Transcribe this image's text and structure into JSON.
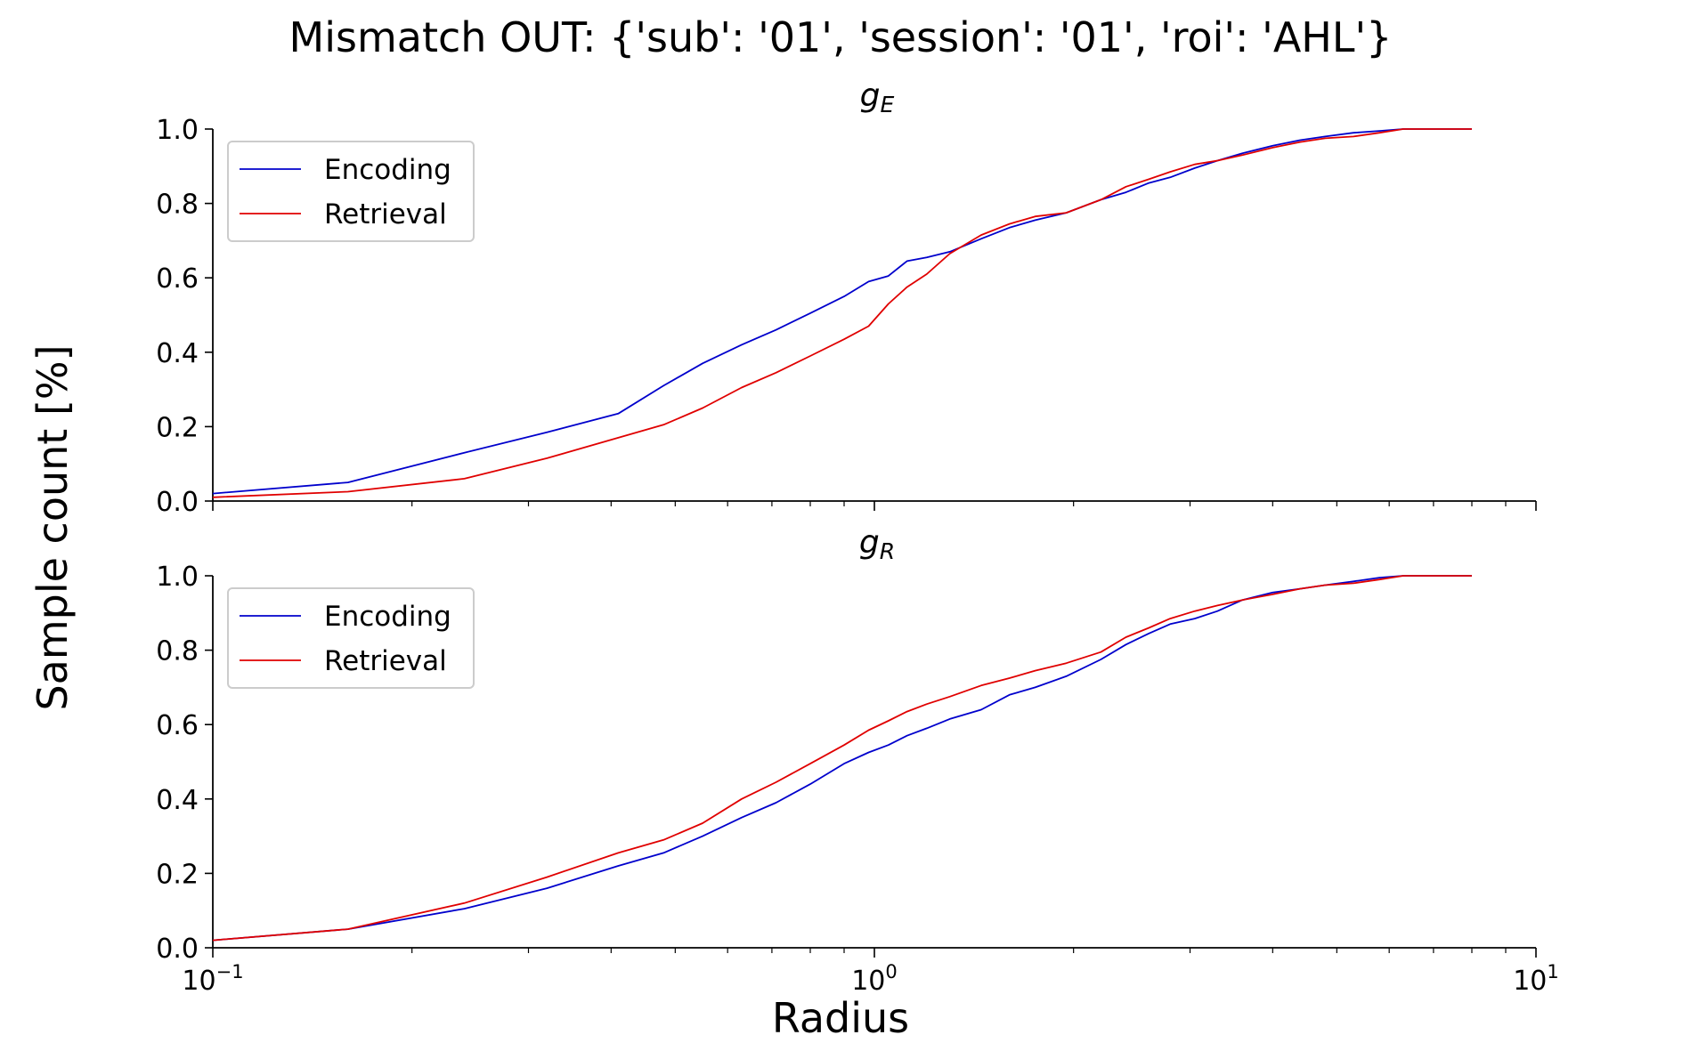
{
  "figure": {
    "suptitle": "Mismatch OUT: {'sub': '01', 'session': '01', 'roi': 'AHL'}",
    "xlabel": "Radius",
    "ylabel": "Sample count [%]"
  },
  "colors": {
    "Encoding": "#0000cc",
    "Retrieval": "#e00000"
  },
  "chart_data": [
    {
      "type": "line",
      "title": "g_E",
      "title_display": {
        "main": "g",
        "sub": "E"
      },
      "xscale": "log",
      "xlim": [
        0.1,
        10
      ],
      "ylim": [
        0.0,
        1.0
      ],
      "xticks": [
        0.1,
        1,
        10
      ],
      "xtick_labels": [
        "10^-1",
        "10^0",
        "10^1"
      ],
      "yticks": [
        "0.0",
        "0.2",
        "0.4",
        "0.6",
        "0.8",
        "1.0"
      ],
      "legend": "top-left",
      "grid": false,
      "series": [
        {
          "name": "Encoding",
          "x": [
            0.1,
            0.16,
            0.24,
            0.32,
            0.41,
            0.48,
            0.55,
            0.63,
            0.71,
            0.8,
            0.9,
            0.98,
            1.05,
            1.12,
            1.2,
            1.3,
            1.45,
            1.6,
            1.75,
            1.95,
            2.2,
            2.4,
            2.6,
            2.8,
            3.05,
            3.3,
            3.6,
            4.0,
            4.4,
            4.8,
            5.3,
            5.8,
            6.3,
            7.0,
            8.0
          ],
          "y": [
            0.02,
            0.05,
            0.13,
            0.185,
            0.235,
            0.31,
            0.37,
            0.42,
            0.46,
            0.505,
            0.55,
            0.59,
            0.605,
            0.645,
            0.655,
            0.67,
            0.705,
            0.735,
            0.755,
            0.775,
            0.81,
            0.83,
            0.855,
            0.87,
            0.895,
            0.915,
            0.935,
            0.955,
            0.97,
            0.98,
            0.99,
            0.995,
            1.0,
            1.0,
            1.0
          ]
        },
        {
          "name": "Retrieval",
          "x": [
            0.1,
            0.16,
            0.24,
            0.32,
            0.41,
            0.48,
            0.55,
            0.63,
            0.71,
            0.8,
            0.9,
            0.98,
            1.05,
            1.12,
            1.2,
            1.3,
            1.45,
            1.6,
            1.75,
            1.95,
            2.2,
            2.4,
            2.6,
            2.8,
            3.05,
            3.3,
            3.6,
            4.0,
            4.4,
            4.8,
            5.3,
            5.8,
            6.3,
            7.0,
            8.0
          ],
          "y": [
            0.01,
            0.025,
            0.06,
            0.115,
            0.17,
            0.205,
            0.25,
            0.305,
            0.345,
            0.39,
            0.435,
            0.47,
            0.53,
            0.575,
            0.61,
            0.665,
            0.715,
            0.745,
            0.765,
            0.775,
            0.81,
            0.845,
            0.865,
            0.885,
            0.905,
            0.915,
            0.93,
            0.95,
            0.965,
            0.975,
            0.98,
            0.99,
            1.0,
            1.0,
            1.0
          ]
        }
      ]
    },
    {
      "type": "line",
      "title": "g_R",
      "title_display": {
        "main": "g",
        "sub": "R"
      },
      "xscale": "log",
      "xlim": [
        0.1,
        10
      ],
      "ylim": [
        0.0,
        1.0
      ],
      "xticks": [
        0.1,
        1,
        10
      ],
      "xtick_labels": [
        "10^-1",
        "10^0",
        "10^1"
      ],
      "yticks": [
        "0.0",
        "0.2",
        "0.4",
        "0.6",
        "0.8",
        "1.0"
      ],
      "legend": "top-left",
      "grid": false,
      "series": [
        {
          "name": "Encoding",
          "x": [
            0.1,
            0.16,
            0.24,
            0.32,
            0.41,
            0.48,
            0.55,
            0.63,
            0.71,
            0.8,
            0.9,
            0.98,
            1.05,
            1.12,
            1.2,
            1.3,
            1.45,
            1.6,
            1.75,
            1.95,
            2.2,
            2.4,
            2.6,
            2.8,
            3.05,
            3.3,
            3.6,
            4.0,
            4.4,
            4.8,
            5.3,
            5.8,
            6.3,
            7.0,
            8.0
          ],
          "y": [
            0.02,
            0.05,
            0.105,
            0.16,
            0.22,
            0.255,
            0.3,
            0.35,
            0.39,
            0.44,
            0.495,
            0.525,
            0.545,
            0.57,
            0.59,
            0.615,
            0.64,
            0.68,
            0.7,
            0.73,
            0.775,
            0.815,
            0.845,
            0.87,
            0.885,
            0.905,
            0.935,
            0.955,
            0.965,
            0.975,
            0.985,
            0.995,
            1.0,
            1.0,
            1.0
          ]
        },
        {
          "name": "Retrieval",
          "x": [
            0.1,
            0.16,
            0.24,
            0.32,
            0.41,
            0.48,
            0.55,
            0.63,
            0.71,
            0.8,
            0.9,
            0.98,
            1.05,
            1.12,
            1.2,
            1.3,
            1.45,
            1.6,
            1.75,
            1.95,
            2.2,
            2.4,
            2.6,
            2.8,
            3.05,
            3.3,
            3.6,
            4.0,
            4.4,
            4.8,
            5.3,
            5.8,
            6.3,
            7.0,
            8.0
          ],
          "y": [
            0.02,
            0.05,
            0.12,
            0.19,
            0.255,
            0.29,
            0.335,
            0.4,
            0.445,
            0.495,
            0.545,
            0.585,
            0.61,
            0.635,
            0.655,
            0.675,
            0.705,
            0.725,
            0.745,
            0.765,
            0.795,
            0.835,
            0.86,
            0.885,
            0.905,
            0.92,
            0.935,
            0.95,
            0.965,
            0.975,
            0.98,
            0.99,
            1.0,
            1.0,
            1.0
          ]
        }
      ]
    }
  ]
}
